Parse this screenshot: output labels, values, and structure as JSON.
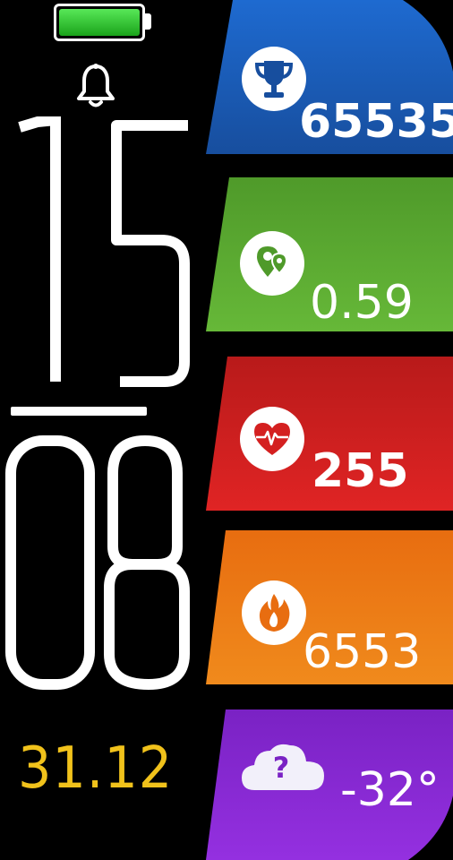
{
  "status": {
    "battery_level": 1.0,
    "battery_color": "#2ec02e",
    "alarm_icon": "bell-icon"
  },
  "time": {
    "hours": "15",
    "minutes": "08"
  },
  "date": "31.12",
  "metrics": [
    {
      "icon": "trophy-icon",
      "value": "65535",
      "color": "#1e63c2"
    },
    {
      "icon": "map-pin-icon",
      "value": "0.59",
      "color": "#53a72d"
    },
    {
      "icon": "heart-rate-icon",
      "value": "255",
      "color": "#d42020"
    },
    {
      "icon": "flame-icon",
      "value": "6553",
      "color": "#ee7a14"
    },
    {
      "icon": "cloud-question-icon",
      "value": "-32°",
      "color": "#8a2bd6"
    }
  ]
}
